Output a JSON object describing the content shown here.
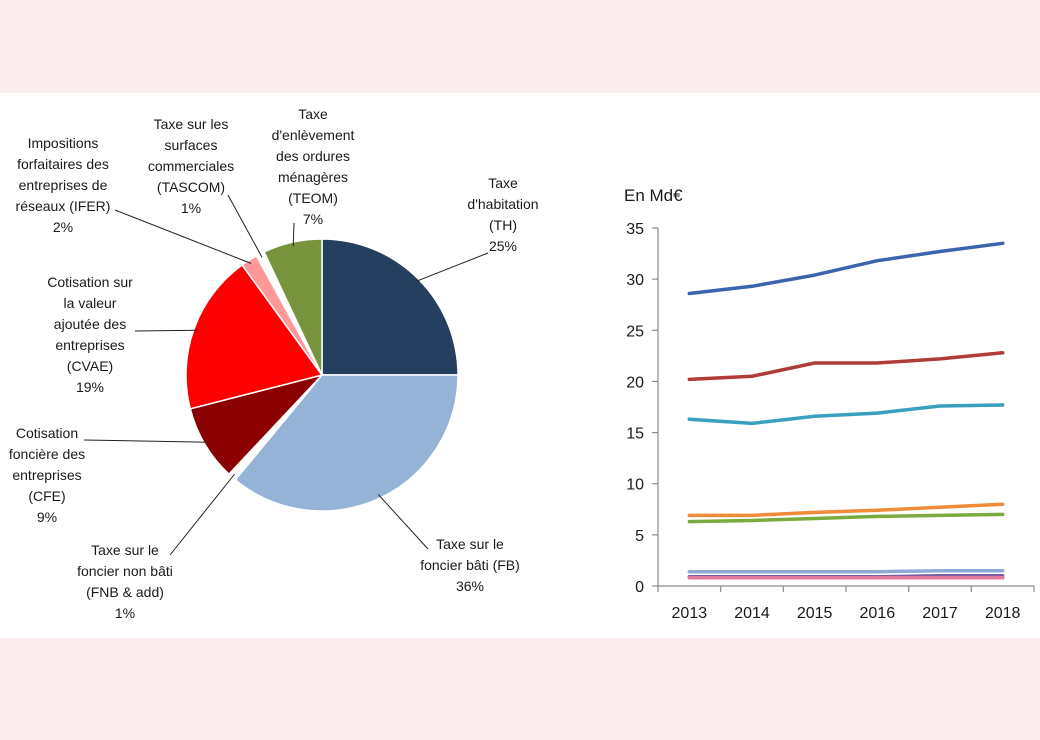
{
  "chart_data": [
    {
      "type": "pie",
      "title": "",
      "slices": [
        {
          "label": [
            "Taxe",
            "d'habitation",
            "(TH)",
            "25%"
          ],
          "value": 25,
          "color": "#243f60"
        },
        {
          "label": [
            "Taxe sur le",
            "foncier bâti (FB)",
            "36%"
          ],
          "value": 36,
          "color": "#95b3d7"
        },
        {
          "label": [
            "Taxe sur le",
            "foncier non bâti",
            "(FNB & add)",
            "1%"
          ],
          "value": 1,
          "color": "#ffffff"
        },
        {
          "label": [
            "Cotisation",
            "foncière des",
            "entreprises",
            "(CFE)",
            "9%"
          ],
          "value": 9,
          "color": "#8b0000"
        },
        {
          "label": [
            "Cotisation sur",
            "la valeur",
            "ajoutée des",
            "entreprises",
            "(CVAE)",
            "19%"
          ],
          "value": 19,
          "color": "#ff0000"
        },
        {
          "label": [
            "Impositions",
            "forfaitaires des",
            "entreprises de",
            "réseaux (IFER)",
            "2%"
          ],
          "value": 2,
          "color": "#ff9999"
        },
        {
          "label": [
            "Taxe sur les",
            "surfaces",
            "commerciales",
            "(TASCOM)",
            "1%"
          ],
          "value": 1,
          "color": "#ffffff"
        },
        {
          "label": [
            "Taxe",
            "d'enlèvement",
            "des ordures",
            "ménagères",
            "(TEOM)",
            "7%"
          ],
          "value": 7,
          "color": "#77933c"
        }
      ]
    },
    {
      "type": "line",
      "unit_label": "En Md€",
      "x": [
        "2013",
        "2014",
        "2015",
        "2016",
        "2017",
        "2018"
      ],
      "ylim": [
        0,
        35
      ],
      "yticks": [
        "0",
        "5",
        "10",
        "15",
        "20",
        "25",
        "30",
        "35"
      ],
      "grid": false,
      "legend": "none",
      "series": [
        {
          "color": "#3b64ad",
          "values": [
            28.6,
            29.3,
            30.4,
            31.8,
            32.7,
            33.5
          ]
        },
        {
          "color": "#b03c3a",
          "values": [
            20.2,
            20.5,
            21.8,
            21.8,
            22.2,
            22.8
          ]
        },
        {
          "color": "#3aa0c0",
          "values": [
            16.3,
            15.9,
            16.6,
            16.9,
            17.6,
            17.7
          ]
        },
        {
          "color": "#f08b3a",
          "values": [
            6.9,
            6.9,
            7.2,
            7.4,
            7.7,
            8.0
          ]
        },
        {
          "color": "#7bab3e",
          "values": [
            6.3,
            6.4,
            6.6,
            6.8,
            6.9,
            7.0
          ]
        },
        {
          "color": "#8ea9d6",
          "values": [
            1.4,
            1.4,
            1.4,
            1.4,
            1.5,
            1.5
          ]
        },
        {
          "color": "#7b5aa6",
          "values": [
            0.9,
            0.9,
            0.9,
            0.9,
            1.0,
            1.0
          ]
        },
        {
          "color": "#e07a9a",
          "values": [
            0.8,
            0.8,
            0.8,
            0.8,
            0.8,
            0.8
          ]
        }
      ]
    }
  ]
}
